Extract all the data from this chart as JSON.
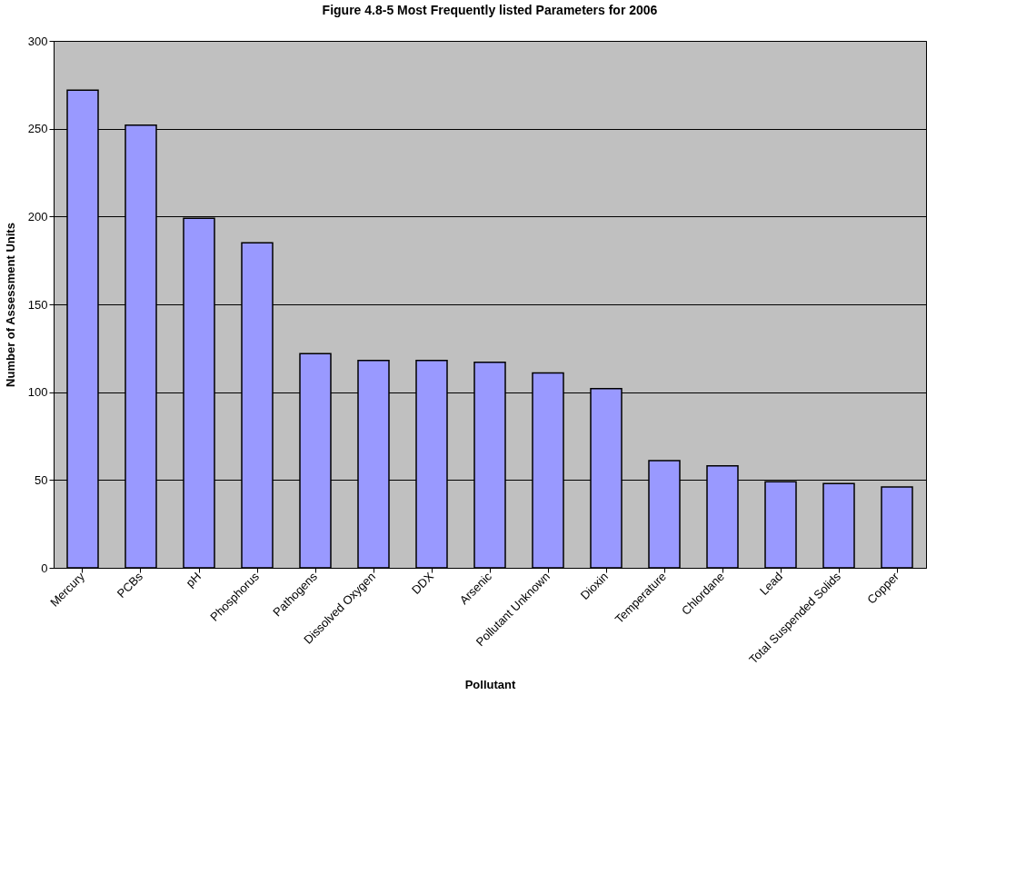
{
  "chart_data": {
    "type": "bar",
    "title": "Figure 4.8-5     Most Frequently listed Parameters for 2006",
    "xlabel": "Pollutant",
    "ylabel": "Number of Assessment Units",
    "categories": [
      "Mercury",
      "PCBs",
      "pH",
      "Phosphorus",
      "Pathogens",
      "Dissolved Oxygen",
      "DDX",
      "Arsenic",
      "Pollutant Unknown",
      "Dioxin",
      "Temperature",
      "Chlordane",
      "Lead",
      "Total Suspended Solids",
      "Copper"
    ],
    "values": [
      272,
      252,
      199,
      185,
      122,
      118,
      118,
      117,
      111,
      102,
      61,
      58,
      49,
      48,
      46
    ],
    "color": "#9999ff",
    "ylim": [
      0,
      300
    ],
    "yticks": [
      0,
      50,
      100,
      150,
      200,
      250,
      300
    ],
    "grid": "y"
  }
}
